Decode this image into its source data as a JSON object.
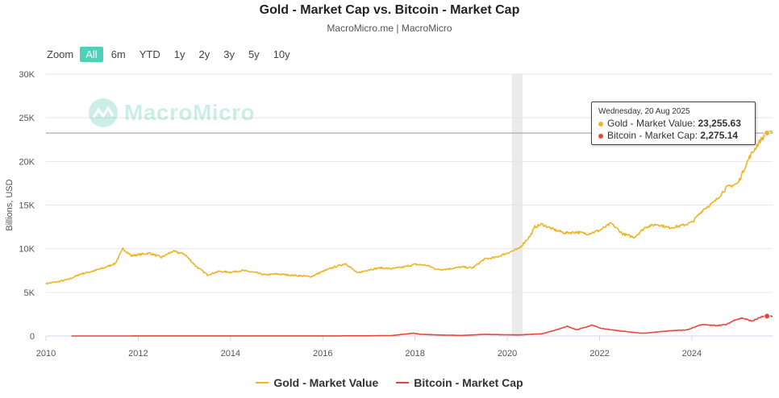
{
  "header": {
    "title": "Gold - Market Cap vs. Bitcoin - Market Cap",
    "subtitle": "MacroMicro.me | MacroMicro"
  },
  "zoom": {
    "label": "Zoom",
    "buttons": [
      "All",
      "6m",
      "YTD",
      "1y",
      "2y",
      "3y",
      "5y",
      "10y"
    ],
    "active": "All"
  },
  "watermark": {
    "text": "MacroMicro"
  },
  "tooltip": {
    "date": "Wednesday, 20 Aug 2025",
    "rows": [
      {
        "label": "Gold - Market Value: ",
        "value": "23,255.63",
        "color": "#f0b429"
      },
      {
        "label": "Bitcoin - Market Cap: ",
        "value": "2,275.14",
        "color": "#e8473e"
      }
    ]
  },
  "legend": [
    {
      "name": "Gold - Market Value",
      "color": "#f0b429"
    },
    {
      "name": "Bitcoin - Market Cap",
      "color": "#e8473e"
    }
  ],
  "chart_data": {
    "type": "line",
    "title": "Gold - Market Cap vs. Bitcoin - Market Cap",
    "subtitle": "MacroMicro.me | MacroMicro",
    "ylabel": "Billions, USD",
    "ylim": [
      0,
      30000
    ],
    "xlim": [
      2010.0,
      2025.75
    ],
    "yticks": [
      "0",
      "5K",
      "10K",
      "15K",
      "20K",
      "25K",
      "30K"
    ],
    "ytick_values": [
      0,
      5000,
      10000,
      15000,
      20000,
      25000,
      30000
    ],
    "xticks": [
      "2010",
      "2012",
      "2014",
      "2016",
      "2018",
      "2020",
      "2022",
      "2024"
    ],
    "xtick_values": [
      2010,
      2012,
      2014,
      2016,
      2018,
      2020,
      2022,
      2024
    ],
    "grid": true,
    "legend_position": "bottom",
    "highlight_band": [
      2020.1,
      2020.33
    ],
    "crosshair_y": 23255.63,
    "series": [
      {
        "name": "Gold - Market Value",
        "color": "#f0b429",
        "x": [
          2010.0,
          2010.25,
          2010.5,
          2010.75,
          2011.0,
          2011.25,
          2011.5,
          2011.67,
          2011.85,
          2012.0,
          2012.25,
          2012.5,
          2012.75,
          2013.0,
          2013.25,
          2013.5,
          2013.75,
          2014.0,
          2014.25,
          2014.5,
          2014.75,
          2015.0,
          2015.25,
          2015.5,
          2015.75,
          2016.0,
          2016.25,
          2016.5,
          2016.75,
          2017.0,
          2017.25,
          2017.5,
          2017.75,
          2018.0,
          2018.25,
          2018.5,
          2018.75,
          2019.0,
          2019.25,
          2019.5,
          2019.75,
          2020.0,
          2020.25,
          2020.5,
          2020.6,
          2020.75,
          2021.0,
          2021.25,
          2021.5,
          2021.75,
          2022.0,
          2022.25,
          2022.5,
          2022.75,
          2023.0,
          2023.25,
          2023.5,
          2023.75,
          2024.0,
          2024.25,
          2024.5,
          2024.75,
          2025.0,
          2025.25,
          2025.5,
          2025.63,
          2025.75
        ],
        "values": [
          6000,
          6200,
          6500,
          7100,
          7400,
          7800,
          8300,
          10000,
          9200,
          9300,
          9500,
          9000,
          9700,
          9400,
          8000,
          7000,
          7400,
          7300,
          7500,
          7300,
          7000,
          7100,
          7000,
          6900,
          6800,
          7400,
          7900,
          8300,
          7200,
          7600,
          7800,
          7700,
          7900,
          8200,
          8100,
          7600,
          7700,
          7900,
          7800,
          8800,
          9000,
          9500,
          10000,
          11500,
          12500,
          12800,
          12200,
          11800,
          11900,
          11700,
          12100,
          12900,
          11700,
          11300,
          12500,
          12800,
          12400,
          12600,
          13000,
          14500,
          15400,
          17000,
          17500,
          20500,
          22500,
          23255.63,
          23200
        ]
      },
      {
        "name": "Bitcoin - Market Cap",
        "color": "#e8473e",
        "x": [
          2010.55,
          2011.0,
          2012.0,
          2013.0,
          2014.0,
          2015.0,
          2016.0,
          2017.0,
          2017.5,
          2017.96,
          2018.1,
          2018.5,
          2019.0,
          2019.5,
          2020.0,
          2020.25,
          2020.75,
          2021.0,
          2021.3,
          2021.5,
          2021.85,
          2022.0,
          2022.4,
          2022.9,
          2023.0,
          2023.5,
          2023.9,
          2024.2,
          2024.5,
          2024.75,
          2024.95,
          2025.1,
          2025.3,
          2025.5,
          2025.63,
          2025.75
        ],
        "values": [
          0,
          2,
          5,
          10,
          10,
          5,
          10,
          20,
          50,
          320,
          200,
          120,
          60,
          180,
          140,
          120,
          250,
          600,
          1100,
          700,
          1250,
          900,
          600,
          320,
          330,
          580,
          700,
          1300,
          1200,
          1300,
          1900,
          2050,
          1700,
          2150,
          2275.14,
          2250
        ]
      }
    ]
  }
}
